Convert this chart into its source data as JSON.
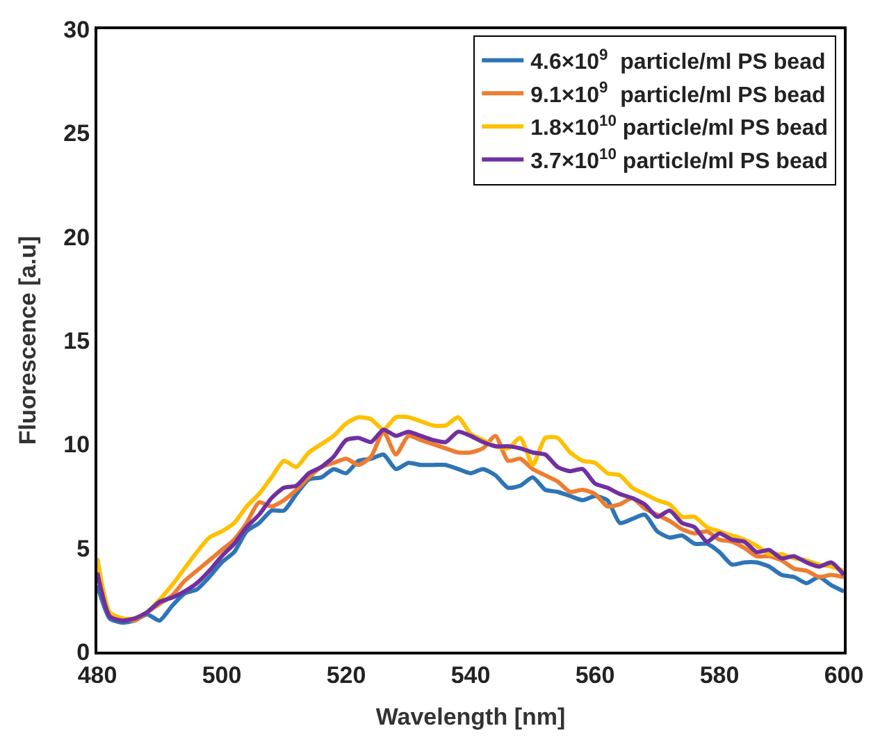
{
  "chart_data": {
    "type": "line",
    "xlabel": "Wavelength [nm]",
    "ylabel": "Fluorescence [a.u]",
    "x": [
      480,
      482,
      484,
      486,
      488,
      490,
      492,
      494,
      496,
      498,
      500,
      502,
      504,
      506,
      508,
      510,
      512,
      514,
      516,
      518,
      520,
      522,
      524,
      526,
      528,
      530,
      532,
      534,
      536,
      538,
      540,
      542,
      544,
      546,
      548,
      550,
      552,
      554,
      556,
      558,
      560,
      562,
      564,
      566,
      568,
      570,
      572,
      574,
      576,
      578,
      580,
      582,
      584,
      586,
      588,
      590,
      592,
      594,
      596,
      598,
      600
    ],
    "series": [
      {
        "name": "4.6×10$^{9}$  particle/ml PS bead",
        "color": "#2e75b6",
        "values": [
          3.2,
          1.6,
          1.4,
          1.5,
          1.8,
          1.5,
          2.2,
          2.8,
          3.0,
          3.6,
          4.3,
          4.8,
          5.8,
          6.2,
          6.8,
          6.8,
          7.6,
          8.3,
          8.4,
          8.8,
          8.6,
          9.2,
          9.3,
          9.5,
          8.8,
          9.1,
          9.0,
          9.0,
          9.0,
          8.8,
          8.6,
          8.8,
          8.5,
          7.9,
          8.0,
          8.4,
          7.8,
          7.7,
          7.5,
          7.3,
          7.5,
          7.3,
          6.2,
          6.4,
          6.6,
          5.8,
          5.5,
          5.6,
          5.2,
          5.2,
          4.8,
          4.2,
          4.3,
          4.3,
          4.1,
          3.7,
          3.6,
          3.3,
          3.6,
          3.2,
          2.9
        ]
      },
      {
        "name": "9.1×10$^{9}$  particle/ml PS bead",
        "color": "#ed7d31",
        "values": [
          4.2,
          1.8,
          1.6,
          1.5,
          1.9,
          2.3,
          2.7,
          3.4,
          3.9,
          4.4,
          4.9,
          5.4,
          6.2,
          7.2,
          7.0,
          7.3,
          7.8,
          8.4,
          8.9,
          9.1,
          9.3,
          9.0,
          9.4,
          10.6,
          9.5,
          10.4,
          10.2,
          10.0,
          9.8,
          9.6,
          9.6,
          9.8,
          10.4,
          9.2,
          9.3,
          8.8,
          8.5,
          8.2,
          7.7,
          7.8,
          7.6,
          7.0,
          7.1,
          7.4,
          6.9,
          6.6,
          6.3,
          5.9,
          5.7,
          5.8,
          5.4,
          5.3,
          5.0,
          4.6,
          4.6,
          4.4,
          4.0,
          3.9,
          3.6,
          3.7,
          3.6
        ]
      },
      {
        "name": "1.8×10$^{10}$ particle/ml PS bead",
        "color": "#ffc000",
        "values": [
          4.5,
          1.9,
          1.6,
          1.6,
          1.9,
          2.5,
          3.2,
          4.0,
          4.8,
          5.5,
          5.8,
          6.2,
          7.0,
          7.6,
          8.4,
          9.2,
          8.9,
          9.6,
          10.0,
          10.4,
          11.0,
          11.3,
          11.2,
          10.7,
          11.3,
          11.3,
          11.1,
          10.9,
          10.9,
          11.3,
          10.5,
          10.2,
          9.9,
          9.8,
          10.3,
          9.0,
          10.3,
          10.3,
          9.6,
          9.2,
          9.1,
          8.6,
          8.5,
          7.9,
          7.6,
          7.3,
          7.1,
          6.5,
          6.5,
          6.0,
          5.8,
          5.6,
          5.4,
          5.1,
          4.7,
          4.7,
          4.5,
          4.4,
          4.2,
          4.1,
          3.9
        ]
      },
      {
        "name": "3.7×10$^{10}$ particle/ml PS bead",
        "color": "#7030a0",
        "values": [
          3.8,
          1.7,
          1.5,
          1.6,
          1.9,
          2.4,
          2.6,
          2.9,
          3.3,
          3.9,
          4.6,
          5.2,
          6.0,
          6.6,
          7.4,
          7.9,
          8.0,
          8.6,
          8.9,
          9.4,
          10.2,
          10.3,
          10.1,
          10.7,
          10.4,
          10.6,
          10.4,
          10.2,
          10.1,
          10.6,
          10.4,
          10.1,
          9.9,
          9.9,
          9.8,
          9.6,
          9.5,
          8.9,
          8.7,
          8.8,
          8.1,
          7.9,
          7.6,
          7.4,
          7.1,
          6.5,
          6.8,
          6.2,
          6.0,
          5.3,
          5.7,
          5.4,
          5.3,
          4.8,
          4.9,
          4.5,
          4.6,
          4.3,
          4.1,
          4.3,
          3.7
        ]
      }
    ],
    "xlim": [
      480,
      600
    ],
    "xticks": [
      480,
      500,
      520,
      540,
      560,
      580,
      600
    ],
    "ylim": [
      0,
      30
    ],
    "yticks": [
      0,
      5,
      10,
      15,
      20,
      25,
      30
    ],
    "legend": "top right",
    "marker": "none",
    "line_style": "solid"
  }
}
